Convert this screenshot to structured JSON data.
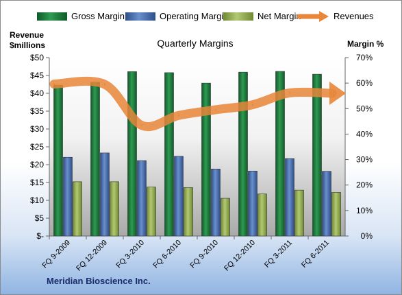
{
  "chart_data": {
    "type": "bar",
    "title": "Quarterly Margins",
    "company": "Meridian Bioscience Inc.",
    "left_axis": {
      "label_line1": "Revenue",
      "label_line2": "$millions",
      "ylim": [
        0,
        50
      ],
      "ticks": [
        {
          "value": 0,
          "label": "$-"
        },
        {
          "value": 5,
          "label": "$5"
        },
        {
          "value": 10,
          "label": "$10"
        },
        {
          "value": 15,
          "label": "$15"
        },
        {
          "value": 20,
          "label": "$20"
        },
        {
          "value": 25,
          "label": "$25"
        },
        {
          "value": 30,
          "label": "$30"
        },
        {
          "value": 35,
          "label": "$35"
        },
        {
          "value": 40,
          "label": "$40"
        },
        {
          "value": 45,
          "label": "$45"
        },
        {
          "value": 50,
          "label": "$50"
        }
      ]
    },
    "right_axis": {
      "label": "Margin %",
      "ylim": [
        0,
        70
      ],
      "ticks": [
        {
          "value": 0,
          "label": "0%"
        },
        {
          "value": 10,
          "label": "10%"
        },
        {
          "value": 20,
          "label": "20%"
        },
        {
          "value": 30,
          "label": "30%"
        },
        {
          "value": 40,
          "label": "40%"
        },
        {
          "value": 50,
          "label": "50%"
        },
        {
          "value": 60,
          "label": "60%"
        },
        {
          "value": 70,
          "label": "70%"
        }
      ]
    },
    "categories": [
      "FQ 9-2009",
      "FQ 12-2009",
      "FQ 3-2010",
      "FQ 6-2010",
      "FQ 9-2010",
      "FQ 12-2010",
      "FQ 3-2011",
      "FQ 6-2011"
    ],
    "series": [
      {
        "name": "Gross Margin",
        "kind": "bar",
        "axis": "right",
        "color": "#1e7a3c",
        "values": [
          59.2,
          60.4,
          64.5,
          64.1,
          60.0,
          64.3,
          64.6,
          63.5
        ]
      },
      {
        "name": "Operating Margin",
        "kind": "bar",
        "axis": "right",
        "color": "#4a6eb0",
        "values": [
          30.9,
          32.6,
          29.6,
          31.3,
          26.3,
          25.5,
          30.4,
          25.4
        ]
      },
      {
        "name": "Net Margin",
        "kind": "bar",
        "axis": "right",
        "color": "#93ad52",
        "values": [
          21.3,
          21.3,
          19.2,
          19.0,
          14.8,
          16.5,
          18.0,
          17.1
        ]
      },
      {
        "name": "Revenues",
        "kind": "line",
        "axis": "left",
        "color": "#e8863a",
        "values": [
          42.6,
          42.5,
          31.0,
          33.8,
          35.4,
          36.8,
          40.1,
          40.0
        ]
      }
    ],
    "legend_position": "top",
    "grid": false
  }
}
